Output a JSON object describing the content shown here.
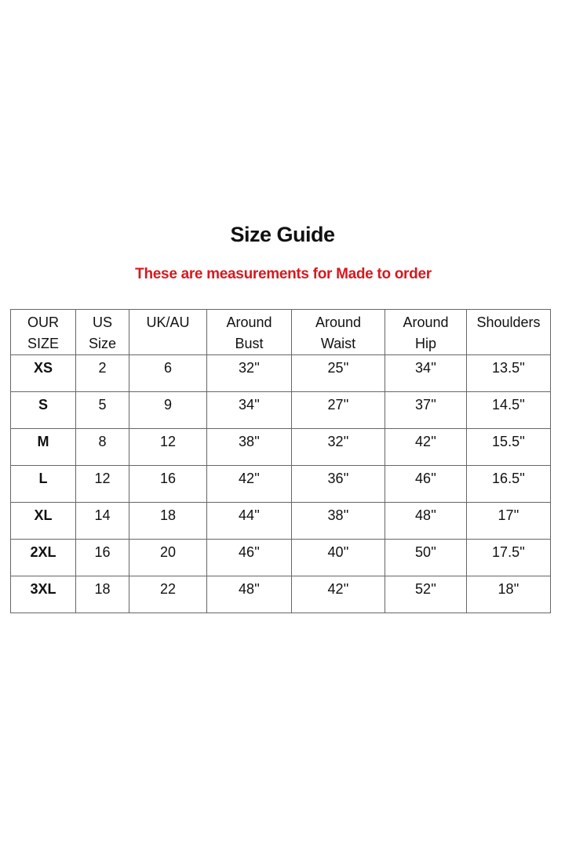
{
  "title": "Size Guide",
  "subtitle": "These are measurements for Made to order",
  "subtitle_color": "#d9181e",
  "table": {
    "headers": [
      [
        "OUR",
        "SIZE"
      ],
      [
        "US",
        "Size"
      ],
      [
        "UK/AU",
        ""
      ],
      [
        "Around",
        "Bust"
      ],
      [
        "Around",
        "Waist"
      ],
      [
        "Around",
        "Hip"
      ],
      [
        "Shoulders",
        ""
      ]
    ],
    "rows": [
      [
        "XS",
        "2",
        "6",
        "32''",
        "25''",
        "34''",
        "13.5''"
      ],
      [
        "S",
        "5",
        "9",
        "34''",
        "27''",
        "37''",
        "14.5''"
      ],
      [
        "M",
        "8",
        "12",
        "38''",
        "32''",
        "42''",
        "15.5''"
      ],
      [
        "L",
        "12",
        "16",
        "42''",
        "36''",
        "46''",
        "16.5''"
      ],
      [
        "XL",
        "14",
        "18",
        "44''",
        "38''",
        "48''",
        "17''"
      ],
      [
        "2XL",
        "16",
        "20",
        "46''",
        "40''",
        "50''",
        "17.5''"
      ],
      [
        "3XL",
        "18",
        "22",
        "48''",
        "42''",
        "52''",
        "18''"
      ]
    ]
  }
}
